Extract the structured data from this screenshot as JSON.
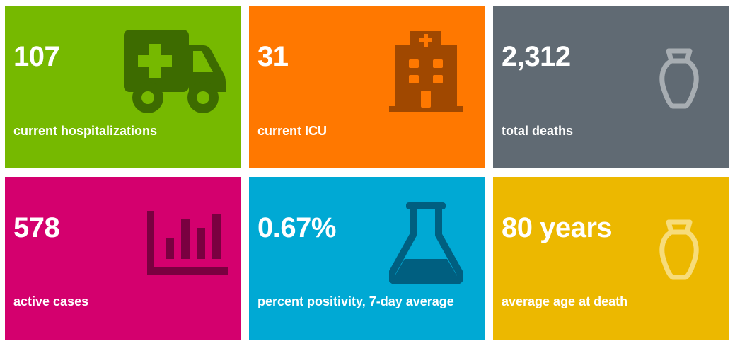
{
  "colors": {
    "green": "#76b900",
    "orange": "#ff7800",
    "gray": "#606a73",
    "magenta": "#d4006e",
    "blue": "#00a9d4",
    "yellow": "#ecb800"
  },
  "tiles": [
    {
      "value": "107",
      "label": "current hospitalizations",
      "icon": "ambulance-icon",
      "color": "#76b900"
    },
    {
      "value": "31",
      "label": "current ICU",
      "icon": "hospital-icon",
      "color": "#ff7800"
    },
    {
      "value": "2,312",
      "label": "total deaths",
      "icon": "urn-icon",
      "color": "#606a73"
    },
    {
      "value": "578",
      "label": "active cases",
      "icon": "bar-chart-icon",
      "color": "#d4006e"
    },
    {
      "value": "0.67%",
      "label": "percent positivity, 7-day average",
      "icon": "flask-icon",
      "color": "#00a9d4"
    },
    {
      "value": "80 years",
      "label": "average age at death",
      "icon": "urn-icon",
      "color": "#ecb800"
    }
  ]
}
